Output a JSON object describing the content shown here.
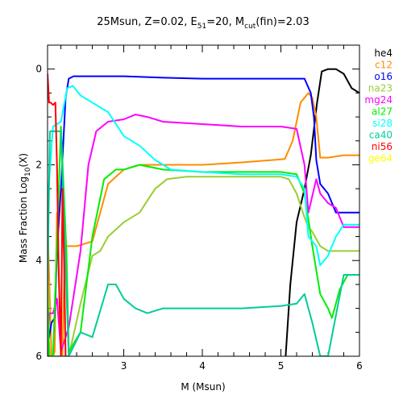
{
  "chart_data": {
    "type": "line",
    "title_parts": {
      "a": "25Msun, Z=0.02, E",
      "a_sub": "51",
      "b": "=20, M",
      "b_sub": "cut",
      "c": "(fin)=2.03"
    },
    "xlabel": "M (Msun)",
    "ylabel_parts": {
      "a": "Mass Fraction Log",
      "sub": "10",
      "b": "(X)"
    },
    "xlim": [
      2.03,
      6.0
    ],
    "ylim": [
      -6.0,
      0.5
    ],
    "xticks": [
      3,
      4,
      5,
      6
    ],
    "yticks": [
      0,
      -2,
      -4,
      -6
    ],
    "ytick_labels": [
      "0",
      "2",
      "4",
      "6"
    ],
    "legend_position": "outside-right",
    "series": [
      {
        "name": "he4",
        "color": "#000000",
        "x": [
          5.06,
          5.12,
          5.2,
          5.3,
          5.38,
          5.46,
          5.52,
          5.6,
          5.7,
          5.8,
          5.9,
          6.0
        ],
        "y": [
          -6.0,
          -4.5,
          -3.2,
          -2.5,
          -1.8,
          -0.7,
          -0.05,
          0.0,
          0.0,
          -0.1,
          -0.4,
          -0.5
        ]
      },
      {
        "name": "c12",
        "color": "#ff8c00",
        "x": [
          2.03,
          2.08,
          2.1,
          2.12,
          2.15,
          2.2,
          2.22,
          2.25,
          2.4,
          2.6,
          2.8,
          3.0,
          3.2,
          3.5,
          4.0,
          4.5,
          4.9,
          5.05,
          5.15,
          5.25,
          5.35,
          5.4,
          5.45,
          5.5,
          5.6,
          5.8,
          6.0
        ],
        "y": [
          -3.2,
          -6.0,
          -6.0,
          -5.9,
          -3.0,
          -6.0,
          -6.0,
          -3.7,
          -3.7,
          -3.6,
          -2.4,
          -2.1,
          -2.0,
          -2.0,
          -2.0,
          -1.95,
          -1.9,
          -1.88,
          -1.5,
          -0.7,
          -0.5,
          -0.6,
          -1.0,
          -1.85,
          -1.85,
          -1.8,
          -1.8
        ]
      },
      {
        "name": "o16",
        "color": "#0000ff",
        "x": [
          2.03,
          2.08,
          2.12,
          2.15,
          2.2,
          2.26,
          2.3,
          2.36,
          2.5,
          3.0,
          3.5,
          4.0,
          4.5,
          5.0,
          5.3,
          5.38,
          5.42,
          5.45,
          5.5,
          5.6,
          5.7,
          5.8,
          6.0
        ],
        "y": [
          -5.8,
          -5.3,
          -5.2,
          -3.8,
          -2.5,
          -0.6,
          -0.2,
          -0.15,
          -0.15,
          -0.15,
          -0.18,
          -0.2,
          -0.2,
          -0.2,
          -0.2,
          -0.5,
          -1.0,
          -1.9,
          -2.4,
          -2.6,
          -3.0,
          -3.0,
          -3.0
        ]
      },
      {
        "name": "na23",
        "color": "#9acd32",
        "x": [
          2.03,
          2.06,
          2.1,
          2.2,
          2.24,
          2.3,
          2.45,
          2.6,
          2.7,
          2.8,
          3.0,
          3.2,
          3.4,
          3.55,
          3.8,
          4.5,
          5.0,
          5.1,
          5.2,
          5.3,
          5.35,
          5.4,
          5.5,
          5.6,
          5.8,
          6.0
        ],
        "y": [
          -5.2,
          -6.0,
          -6.0,
          -6.0,
          -6.0,
          -6.0,
          -4.9,
          -3.9,
          -3.8,
          -3.5,
          -3.2,
          -3.0,
          -2.5,
          -2.3,
          -2.25,
          -2.25,
          -2.25,
          -2.3,
          -2.6,
          -3.1,
          -3.3,
          -3.4,
          -3.7,
          -3.8,
          -3.8,
          -3.8
        ]
      },
      {
        "name": "mg24",
        "color": "#ff00ff",
        "x": [
          2.03,
          2.05,
          2.1,
          2.15,
          2.2,
          2.3,
          2.45,
          2.55,
          2.65,
          2.8,
          3.0,
          3.15,
          3.3,
          3.5,
          4.0,
          4.5,
          5.0,
          5.2,
          5.3,
          5.35,
          5.45,
          5.5,
          5.6,
          5.7,
          5.8,
          6.0
        ],
        "y": [
          -6.0,
          -5.1,
          -5.1,
          -4.8,
          -5.9,
          -5.4,
          -3.8,
          -2.0,
          -1.3,
          -1.1,
          -1.05,
          -0.95,
          -1.0,
          -1.1,
          -1.15,
          -1.2,
          -1.2,
          -1.25,
          -2.0,
          -3.0,
          -2.3,
          -2.6,
          -2.8,
          -2.9,
          -3.3,
          -3.3
        ]
      },
      {
        "name": "al27",
        "color": "#00ee00",
        "x": [
          2.03,
          2.05,
          2.1,
          2.2,
          2.27,
          2.3,
          2.45,
          2.6,
          2.75,
          2.9,
          3.0,
          3.2,
          3.5,
          4.0,
          4.5,
          5.0,
          5.2,
          5.3,
          5.4,
          5.5,
          5.6,
          5.65,
          5.75,
          5.85,
          6.0
        ],
        "y": [
          -4.4,
          -6.0,
          -6.0,
          -1.2,
          -3.8,
          -5.9,
          -5.5,
          -3.5,
          -2.3,
          -2.1,
          -2.1,
          -2.0,
          -2.1,
          -2.15,
          -2.15,
          -2.15,
          -2.2,
          -2.6,
          -3.7,
          -4.7,
          -5.0,
          -5.2,
          -4.6,
          -4.3,
          -4.3
        ]
      },
      {
        "name": "si28",
        "color": "#00ffff",
        "x": [
          2.03,
          2.1,
          2.2,
          2.28,
          2.35,
          2.45,
          2.6,
          2.8,
          3.0,
          3.2,
          3.4,
          3.6,
          4.0,
          4.5,
          5.0,
          5.2,
          5.3,
          5.35,
          5.45,
          5.5,
          5.6,
          5.7,
          5.8,
          6.0
        ],
        "y": [
          -2.8,
          -1.2,
          -1.1,
          -0.4,
          -0.35,
          -0.55,
          -0.7,
          -0.9,
          -1.4,
          -1.6,
          -1.9,
          -2.1,
          -2.15,
          -2.2,
          -2.2,
          -2.25,
          -2.5,
          -3.5,
          -3.7,
          -4.1,
          -3.9,
          -3.5,
          -3.25,
          -3.25
        ]
      },
      {
        "name": "ca40",
        "color": "#00cc99",
        "x": [
          2.03,
          2.06,
          2.1,
          2.2,
          2.3,
          2.45,
          2.6,
          2.8,
          2.9,
          3.0,
          3.15,
          3.3,
          3.5,
          4.0,
          4.5,
          5.0,
          5.2,
          5.3,
          5.4,
          5.5,
          5.6,
          5.8,
          6.0
        ],
        "y": [
          -4.5,
          -1.3,
          -1.3,
          -1.3,
          -6.0,
          -5.5,
          -5.6,
          -4.5,
          -4.5,
          -4.8,
          -5.0,
          -5.1,
          -5.0,
          -5.0,
          -5.0,
          -4.95,
          -4.9,
          -4.7,
          -5.3,
          -6.0,
          -6.0,
          -4.3,
          -4.3
        ]
      },
      {
        "name": "ni56",
        "color": "#ff0000",
        "x": [
          2.03,
          2.05,
          2.07,
          2.1,
          2.13,
          2.15,
          2.17,
          2.2,
          2.22,
          2.24,
          2.26
        ],
        "y": [
          -0.1,
          -0.7,
          -0.7,
          -0.75,
          -0.7,
          -2.0,
          -4.0,
          -6.0,
          -2.5,
          -4.0,
          -6.0
        ]
      },
      {
        "name": "ge64",
        "color": "#ffff00",
        "x": [],
        "y": []
      }
    ]
  }
}
